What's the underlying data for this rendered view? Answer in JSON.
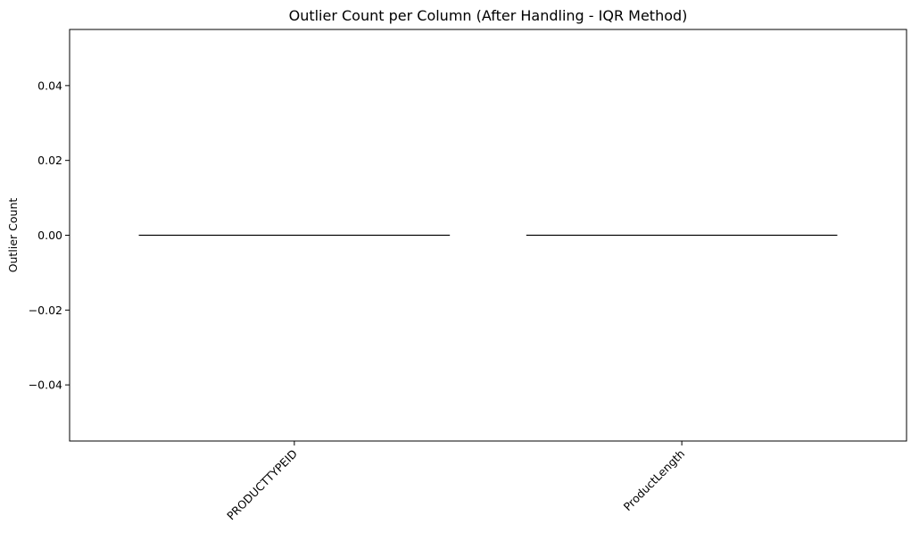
{
  "chart_data": {
    "type": "bar",
    "title": "Outlier Count per Column (After Handling - IQR Method)",
    "xlabel": "",
    "ylabel": "Outlier Count",
    "categories": [
      "PRODUCTTYPEID",
      "ProductLength"
    ],
    "values": [
      0,
      0
    ],
    "ylim": [
      -0.055,
      0.055
    ],
    "yticks": [
      -0.04,
      -0.02,
      0.0,
      0.02,
      0.04
    ],
    "ytick_labels": [
      "−0.04",
      "−0.02",
      "0.00",
      "0.02",
      "0.04"
    ],
    "x_tick_rotation": 45,
    "grid": false,
    "bar_edge_color": "#000000",
    "bar_fill_color": "#ffffff"
  }
}
